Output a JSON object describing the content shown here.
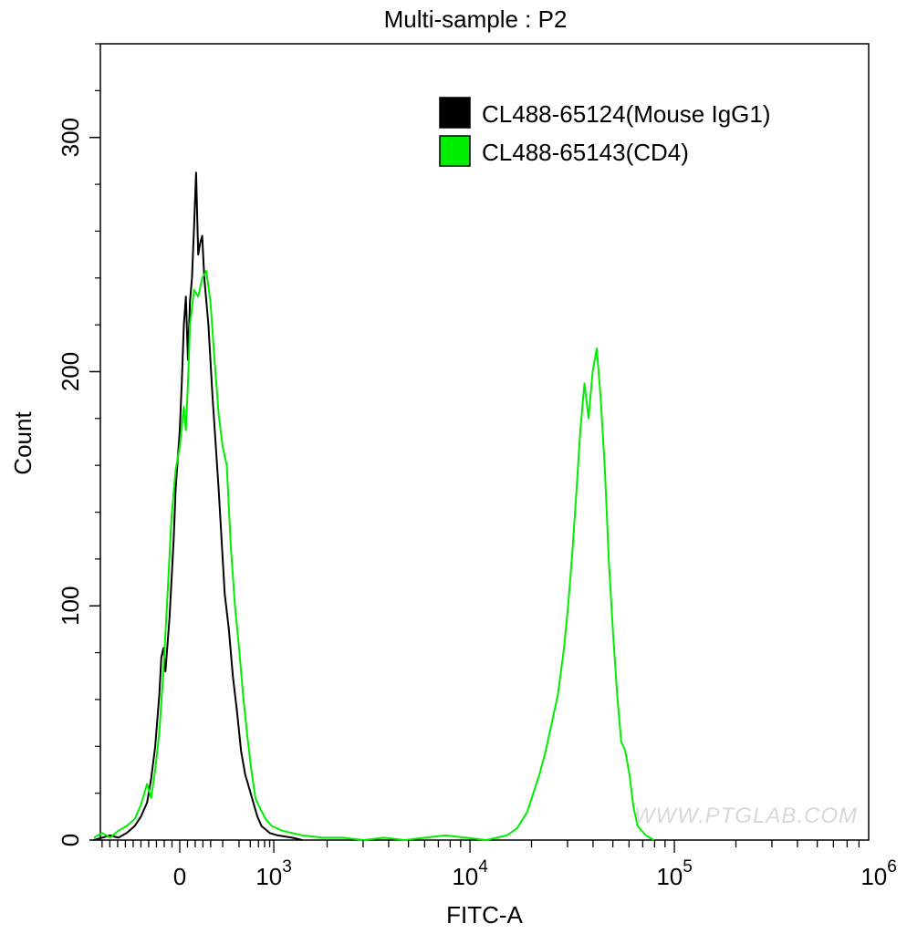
{
  "chart_data": {
    "type": "line",
    "title": "Multi-sample : P2",
    "xlabel": "FITC-A",
    "ylabel": "Count",
    "x_scale": "biexponential",
    "ylim": [
      0,
      340
    ],
    "y_ticks": [
      {
        "value": 0,
        "label": "0"
      },
      {
        "value": 100,
        "label": "100"
      },
      {
        "value": 200,
        "label": "200"
      },
      {
        "value": 300,
        "label": "300"
      }
    ],
    "x_ticks": [
      {
        "value": "0",
        "base": "",
        "exp": "0"
      },
      {
        "value": "1000",
        "base": "10",
        "exp": "3"
      },
      {
        "value": "10000",
        "base": "10",
        "exp": "4"
      },
      {
        "value": "100000",
        "base": "10",
        "exp": "5"
      },
      {
        "value": "1000000",
        "base": "10",
        "exp": "6"
      }
    ],
    "grid": false,
    "legend_position": "top-right",
    "watermark": "WWW.PTGLAB.COM",
    "series": [
      {
        "name": "CL488-65124(Mouse IgG1)",
        "color": "#000000",
        "points": [
          [
            -0.42,
            0
          ],
          [
            -0.38,
            1
          ],
          [
            -0.34,
            2
          ],
          [
            -0.3,
            1
          ],
          [
            -0.26,
            3
          ],
          [
            -0.22,
            6
          ],
          [
            -0.19,
            10
          ],
          [
            -0.16,
            16
          ],
          [
            -0.14,
            26
          ],
          [
            -0.12,
            40
          ],
          [
            -0.1,
            62
          ],
          [
            -0.09,
            78
          ],
          [
            -0.08,
            82
          ],
          [
            -0.07,
            72
          ],
          [
            -0.05,
            95
          ],
          [
            -0.03,
            128
          ],
          [
            -0.02,
            150
          ],
          [
            0.0,
            175
          ],
          [
            0.01,
            195
          ],
          [
            0.02,
            220
          ],
          [
            0.03,
            232
          ],
          [
            0.04,
            205
          ],
          [
            0.05,
            230
          ],
          [
            0.06,
            240
          ],
          [
            0.07,
            262
          ],
          [
            0.08,
            285
          ],
          [
            0.09,
            250
          ],
          [
            0.1,
            255
          ],
          [
            0.11,
            258
          ],
          [
            0.12,
            240
          ],
          [
            0.14,
            220
          ],
          [
            0.16,
            190
          ],
          [
            0.19,
            150
          ],
          [
            0.22,
            105
          ],
          [
            0.24,
            90
          ],
          [
            0.26,
            70
          ],
          [
            0.28,
            55
          ],
          [
            0.3,
            38
          ],
          [
            0.32,
            28
          ],
          [
            0.34,
            22
          ],
          [
            0.36,
            16
          ],
          [
            0.38,
            10
          ],
          [
            0.4,
            6
          ],
          [
            0.44,
            3
          ],
          [
            0.48,
            2
          ],
          [
            0.55,
            1
          ],
          [
            0.6,
            0
          ]
        ]
      },
      {
        "name": "CL488-65143(CD4)",
        "color": "#00ee00",
        "points": [
          [
            -0.42,
            1
          ],
          [
            -0.38,
            3
          ],
          [
            -0.34,
            1
          ],
          [
            -0.3,
            4
          ],
          [
            -0.26,
            6
          ],
          [
            -0.22,
            9
          ],
          [
            -0.19,
            15
          ],
          [
            -0.16,
            24
          ],
          [
            -0.14,
            18
          ],
          [
            -0.12,
            30
          ],
          [
            -0.1,
            46
          ],
          [
            -0.08,
            72
          ],
          [
            -0.06,
            105
          ],
          [
            -0.04,
            138
          ],
          [
            -0.02,
            158
          ],
          [
            0.0,
            168
          ],
          [
            0.02,
            185
          ],
          [
            0.03,
            175
          ],
          [
            0.04,
            195
          ],
          [
            0.05,
            220
          ],
          [
            0.07,
            235
          ],
          [
            0.09,
            232
          ],
          [
            0.11,
            240
          ],
          [
            0.13,
            243
          ],
          [
            0.15,
            230
          ],
          [
            0.17,
            205
          ],
          [
            0.19,
            182
          ],
          [
            0.21,
            168
          ],
          [
            0.23,
            160
          ],
          [
            0.25,
            125
          ],
          [
            0.27,
            100
          ],
          [
            0.29,
            82
          ],
          [
            0.31,
            62
          ],
          [
            0.33,
            45
          ],
          [
            0.35,
            30
          ],
          [
            0.37,
            18
          ],
          [
            0.39,
            14
          ],
          [
            0.42,
            9
          ],
          [
            0.45,
            6
          ],
          [
            0.5,
            4
          ],
          [
            0.55,
            3
          ],
          [
            0.6,
            2
          ],
          [
            0.7,
            1
          ],
          [
            0.8,
            1
          ],
          [
            0.9,
            0
          ],
          [
            1.0,
            1
          ],
          [
            1.1,
            0
          ],
          [
            1.2,
            1
          ],
          [
            1.3,
            2
          ],
          [
            1.4,
            1
          ],
          [
            1.5,
            0
          ],
          [
            1.6,
            2
          ],
          [
            1.65,
            5
          ],
          [
            1.7,
            12
          ],
          [
            1.73,
            20
          ],
          [
            1.76,
            28
          ],
          [
            1.79,
            38
          ],
          [
            1.82,
            50
          ],
          [
            1.85,
            62
          ],
          [
            1.88,
            82
          ],
          [
            1.9,
            100
          ],
          [
            1.92,
            122
          ],
          [
            1.94,
            148
          ],
          [
            1.96,
            175
          ],
          [
            1.98,
            195
          ],
          [
            2.0,
            180
          ],
          [
            2.02,
            200
          ],
          [
            2.04,
            210
          ],
          [
            2.06,
            188
          ],
          [
            2.08,
            158
          ],
          [
            2.1,
            118
          ],
          [
            2.12,
            88
          ],
          [
            2.14,
            62
          ],
          [
            2.16,
            42
          ],
          [
            2.18,
            38
          ],
          [
            2.2,
            28
          ],
          [
            2.22,
            14
          ],
          [
            2.24,
            6
          ],
          [
            2.28,
            2
          ],
          [
            2.32,
            0
          ]
        ]
      }
    ]
  }
}
